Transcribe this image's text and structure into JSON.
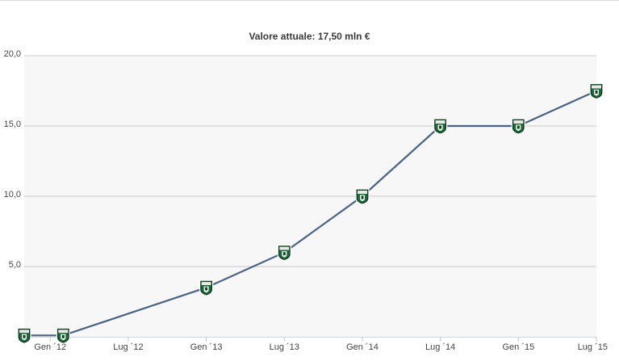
{
  "page": {
    "title": "Valore attuale: 17,50 mln €"
  },
  "colors": {
    "plot_background": "#f7f7f8",
    "grid": "#c9c9c9",
    "line": "#4a6283",
    "badge_green": "#1d6b3a",
    "badge_dark": "#0f3d20"
  },
  "chart_data": {
    "type": "line",
    "title": "Valore attuale: 17,50 mln €",
    "xlabel": "",
    "ylabel": "",
    "ylim": [
      0,
      20
    ],
    "grid": true,
    "y_ticks": [
      {
        "value": 5,
        "label": "5,0"
      },
      {
        "value": 10,
        "label": "10,0"
      },
      {
        "value": 15,
        "label": "15,0"
      },
      {
        "value": 20,
        "label": "20,0"
      }
    ],
    "x_ticks": [
      {
        "date": "2012-01",
        "label": "Gen ´12"
      },
      {
        "date": "2012-07",
        "label": "Lug ´12"
      },
      {
        "date": "2013-01",
        "label": "Gen ´13"
      },
      {
        "date": "2013-07",
        "label": "Lug ´13"
      },
      {
        "date": "2014-01",
        "label": "Gen ´14"
      },
      {
        "date": "2014-07",
        "label": "Lug ´14"
      },
      {
        "date": "2015-01",
        "label": "Gen ´15"
      },
      {
        "date": "2015-07",
        "label": "Lug ´15"
      }
    ],
    "x_range": [
      "2011-11",
      "2015-07"
    ],
    "series": [
      {
        "marker": "club-crest-icon",
        "points": [
          {
            "x": "2011-11",
            "y": 0.1
          },
          {
            "x": "2012-02",
            "y": 0.1
          },
          {
            "x": "2013-01",
            "y": 3.5
          },
          {
            "x": "2013-07",
            "y": 6.0
          },
          {
            "x": "2014-01",
            "y": 10.0
          },
          {
            "x": "2014-07",
            "y": 15.0
          },
          {
            "x": "2015-01",
            "y": 15.0
          },
          {
            "x": "2015-07",
            "y": 17.5
          }
        ]
      }
    ]
  }
}
